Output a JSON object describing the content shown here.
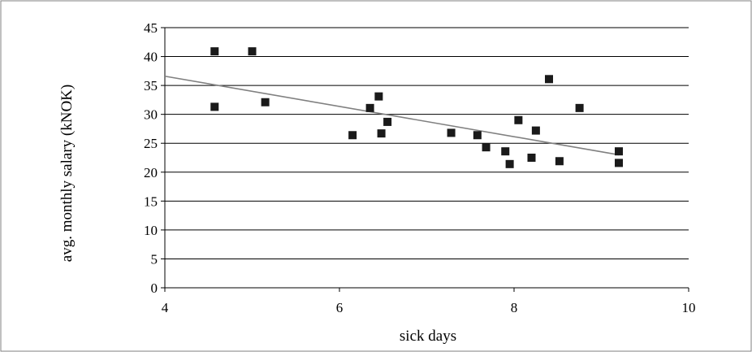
{
  "chart_data": {
    "type": "scatter",
    "title": "",
    "xlabel": "sick days",
    "ylabel": "avg. monthly salary (kNOK)",
    "xlim": [
      4,
      10
    ],
    "ylim": [
      0,
      45
    ],
    "x_ticks": [
      4,
      6,
      8,
      10
    ],
    "y_ticks": [
      0,
      5,
      10,
      15,
      20,
      25,
      30,
      35,
      40,
      45
    ],
    "grid": "horizontal",
    "legend": "none",
    "colors": {
      "points": "#1a1a1a",
      "trendline": "#808080",
      "grid": "#000000",
      "frame": "#808080"
    },
    "series": [
      {
        "points": [
          {
            "x": 4.57,
            "y": 40.9
          },
          {
            "x": 4.57,
            "y": 31.3
          },
          {
            "x": 5.0,
            "y": 40.9
          },
          {
            "x": 5.15,
            "y": 32.1
          },
          {
            "x": 6.15,
            "y": 26.4
          },
          {
            "x": 6.35,
            "y": 31.1
          },
          {
            "x": 6.45,
            "y": 33.1
          },
          {
            "x": 6.48,
            "y": 26.7
          },
          {
            "x": 6.55,
            "y": 28.7
          },
          {
            "x": 7.28,
            "y": 26.8
          },
          {
            "x": 7.58,
            "y": 26.4
          },
          {
            "x": 7.68,
            "y": 24.3
          },
          {
            "x": 7.9,
            "y": 23.6
          },
          {
            "x": 7.95,
            "y": 21.4
          },
          {
            "x": 8.05,
            "y": 29.0
          },
          {
            "x": 8.2,
            "y": 22.5
          },
          {
            "x": 8.25,
            "y": 27.2
          },
          {
            "x": 8.4,
            "y": 36.1
          },
          {
            "x": 8.52,
            "y": 21.9
          },
          {
            "x": 8.75,
            "y": 31.1
          },
          {
            "x": 9.2,
            "y": 23.6
          },
          {
            "x": 9.2,
            "y": 21.6
          }
        ]
      }
    ],
    "trendline": {
      "type": "linear",
      "x": [
        4,
        9.2
      ],
      "y": [
        36.6,
        23.0
      ]
    }
  }
}
